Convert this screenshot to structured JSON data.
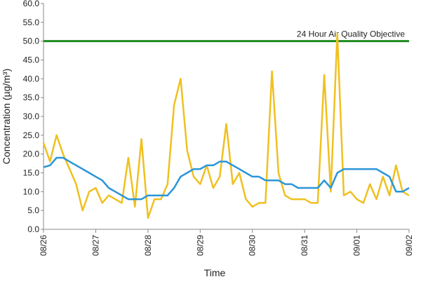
{
  "chart_data": {
    "type": "line",
    "x_label": "Time",
    "y_label": "Concentration (µg/m³)",
    "categories": [
      "08/26",
      null,
      null,
      null,
      null,
      null,
      null,
      null,
      "08/27",
      null,
      null,
      null,
      null,
      null,
      null,
      null,
      "08/28",
      null,
      null,
      null,
      null,
      null,
      null,
      null,
      "08/29",
      null,
      null,
      null,
      null,
      null,
      null,
      null,
      "08/30",
      null,
      null,
      null,
      null,
      null,
      null,
      null,
      "08/31",
      null,
      null,
      null,
      null,
      null,
      null,
      null,
      "09/01",
      null,
      null,
      null,
      null,
      null,
      null,
      null,
      "09/02"
    ],
    "series": [
      {
        "color": "#f0c020",
        "values": [
          23,
          18,
          25,
          20,
          16,
          12,
          5,
          10,
          11,
          7,
          9,
          8,
          7,
          19,
          6,
          24,
          3,
          8,
          8,
          12,
          33,
          40,
          21,
          14,
          12,
          17,
          11,
          14,
          28,
          12,
          15,
          8,
          6,
          7,
          7,
          42,
          15,
          9,
          8,
          8,
          8,
          7,
          7,
          41,
          10,
          52,
          9,
          10,
          8,
          7,
          12,
          8,
          14,
          9,
          17,
          10,
          9
        ]
      },
      {
        "color": "#2b95d8",
        "values": [
          16.5,
          17,
          19,
          19,
          18,
          17,
          16,
          15,
          14,
          13,
          11,
          10,
          9,
          8,
          8,
          8,
          9,
          9,
          9,
          9,
          11,
          14,
          15,
          16,
          16,
          17,
          17,
          18,
          18,
          17,
          16,
          15,
          14,
          14,
          13,
          13,
          13,
          12,
          12,
          11,
          11,
          11,
          11,
          13,
          11,
          15,
          16,
          16,
          16,
          16,
          16,
          16,
          15,
          14,
          10,
          10,
          11
        ]
      }
    ],
    "reference_lines": [
      {
        "value": 50,
        "label": "24 Hour Air Quality Objective",
        "color": "#1e8a1e"
      }
    ],
    "ylim": [
      0,
      60
    ],
    "yticks": [
      {
        "value": 0,
        "label": "0.0"
      },
      {
        "value": 5,
        "label": "5.0"
      },
      {
        "value": 10,
        "label": "10.0"
      },
      {
        "value": 15,
        "label": "15.0"
      },
      {
        "value": 20,
        "label": "20.0"
      },
      {
        "value": 25,
        "label": "25.0"
      },
      {
        "value": 30,
        "label": "30.0"
      },
      {
        "value": 35,
        "label": "35.0"
      },
      {
        "value": 40,
        "label": "40.0"
      },
      {
        "value": 45,
        "label": "45.0"
      },
      {
        "value": 50,
        "label": "50.0"
      },
      {
        "value": 55,
        "label": "55.0"
      },
      {
        "value": 60,
        "label": "60.0"
      }
    ],
    "grid": false
  }
}
